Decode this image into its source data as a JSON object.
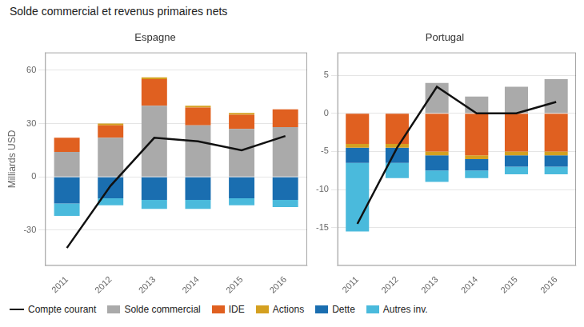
{
  "title": "Solde commercial et revenus primaires nets",
  "chart_data": [
    {
      "type": "bar",
      "title": "Espagne",
      "ylabel": "Milliards USD",
      "categories": [
        "2011",
        "2012",
        "2013",
        "2014",
        "2015",
        "2016"
      ],
      "series": [
        {
          "name": "Solde commercial",
          "color": "#AAAAAA",
          "values": [
            14,
            22,
            40,
            29,
            27,
            28
          ]
        },
        {
          "name": "IDE",
          "color": "#E06020",
          "values": [
            8,
            7,
            15,
            10,
            8,
            10
          ]
        },
        {
          "name": "Actions",
          "color": "#D4A020",
          "values": [
            0,
            1,
            1,
            1,
            1,
            0
          ]
        },
        {
          "name": "Dette",
          "color": "#1A6EB0",
          "values": [
            -15,
            -12,
            -13,
            -13,
            -12,
            -13
          ]
        },
        {
          "name": "Autres inv.",
          "color": "#4ABADC",
          "values": [
            -7,
            -4,
            -5,
            -5,
            -4,
            -4
          ]
        },
        {
          "name": "Compte courant",
          "type": "line",
          "color": "#111111",
          "values": [
            -40,
            -5,
            22,
            20,
            15,
            23
          ]
        }
      ],
      "stacked": true,
      "ylim": [
        -50,
        70
      ],
      "yticks": [
        -30,
        0,
        30,
        60
      ],
      "grid": true,
      "legend": "bottom"
    },
    {
      "type": "bar",
      "title": "Portugal",
      "categories": [
        "2011",
        "2012",
        "2013",
        "2014",
        "2015",
        "2016"
      ],
      "series": [
        {
          "name": "Solde commercial",
          "color": "#AAAAAA",
          "values": [
            0,
            0,
            4,
            2.2,
            3.5,
            4.5
          ]
        },
        {
          "name": "IDE",
          "color": "#E06020",
          "values": [
            -4,
            -4,
            -5,
            -5.5,
            -5,
            -5
          ]
        },
        {
          "name": "Actions",
          "color": "#D4A020",
          "values": [
            -0.5,
            -0.5,
            -0.5,
            -0.5,
            -0.5,
            -0.5
          ]
        },
        {
          "name": "Dette",
          "color": "#1A6EB0",
          "values": [
            -2,
            -2,
            -2,
            -1.5,
            -1.5,
            -1.5
          ]
        },
        {
          "name": "Autres inv.",
          "color": "#4ABADC",
          "values": [
            -9,
            -2,
            -1.5,
            -1,
            -1,
            -1
          ]
        },
        {
          "name": "Compte courant",
          "type": "line",
          "color": "#111111",
          "values": [
            -14.5,
            -4.5,
            3.5,
            0,
            0,
            1.5
          ]
        }
      ],
      "stacked": true,
      "ylim": [
        -20,
        8
      ],
      "yticks": [
        -15,
        -10,
        -5,
        0,
        5
      ],
      "grid": true
    }
  ]
}
